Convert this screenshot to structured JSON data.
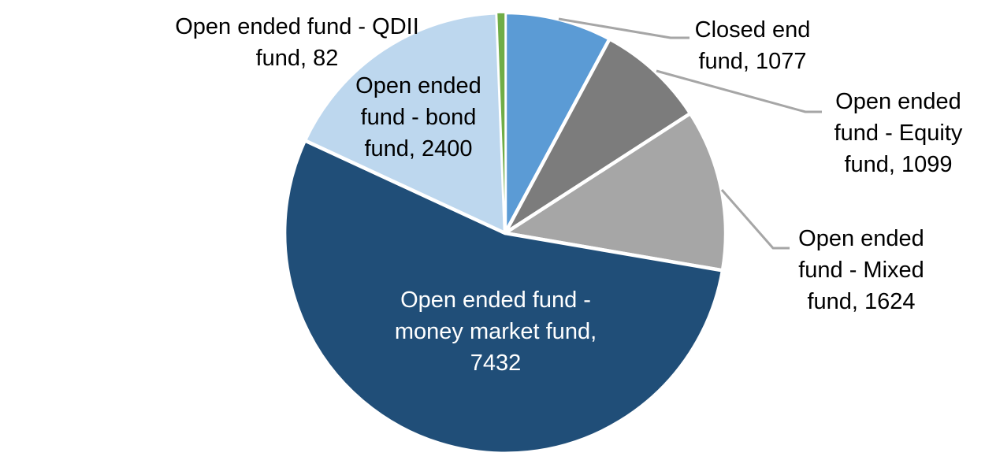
{
  "chart_data": {
    "type": "pie",
    "start_angle": "12-oclock",
    "direction": "clockwise",
    "legend": "none",
    "background_color": "#FFFFFF",
    "slice_border_color": "#FFFFFF",
    "leader_line_color": "#A6A6A6",
    "slices": [
      {
        "label": "Closed end fund",
        "value": 1077,
        "color": "#5B9BD5",
        "label_color": "#000000",
        "label_position": "outside",
        "label_lines": [
          "Closed end",
          "fund, 1077"
        ]
      },
      {
        "label": "Open ended fund - Equity fund",
        "value": 1099,
        "color": "#7C7C7C",
        "label_color": "#000000",
        "label_position": "outside",
        "label_lines": [
          "Open ended",
          "fund - Equity",
          "fund, 1099"
        ]
      },
      {
        "label": "Open ended fund - Mixed fund",
        "value": 1624,
        "color": "#A6A6A6",
        "label_color": "#000000",
        "label_position": "outside",
        "label_lines": [
          "Open ended",
          "fund - Mixed",
          "fund, 1624"
        ]
      },
      {
        "label": "Open ended fund - money market fund",
        "value": 7432,
        "color": "#204E78",
        "label_color": "#FFFFFF",
        "label_position": "inside",
        "label_lines": [
          "Open ended fund -",
          "money market fund,",
          "7432"
        ]
      },
      {
        "label": "Open ended fund - bond fund",
        "value": 2400,
        "color": "#BDD7EE",
        "label_color": "#000000",
        "label_position": "inside",
        "label_lines": [
          "Open ended",
          "fund - bond",
          "fund, 2400"
        ]
      },
      {
        "label": "Open ended fund - QDII fund",
        "value": 82,
        "color": "#70AD47",
        "label_color": "#000000",
        "label_position": "outside",
        "label_lines": [
          "Open ended fund - QDII",
          "fund, 82"
        ]
      }
    ]
  }
}
